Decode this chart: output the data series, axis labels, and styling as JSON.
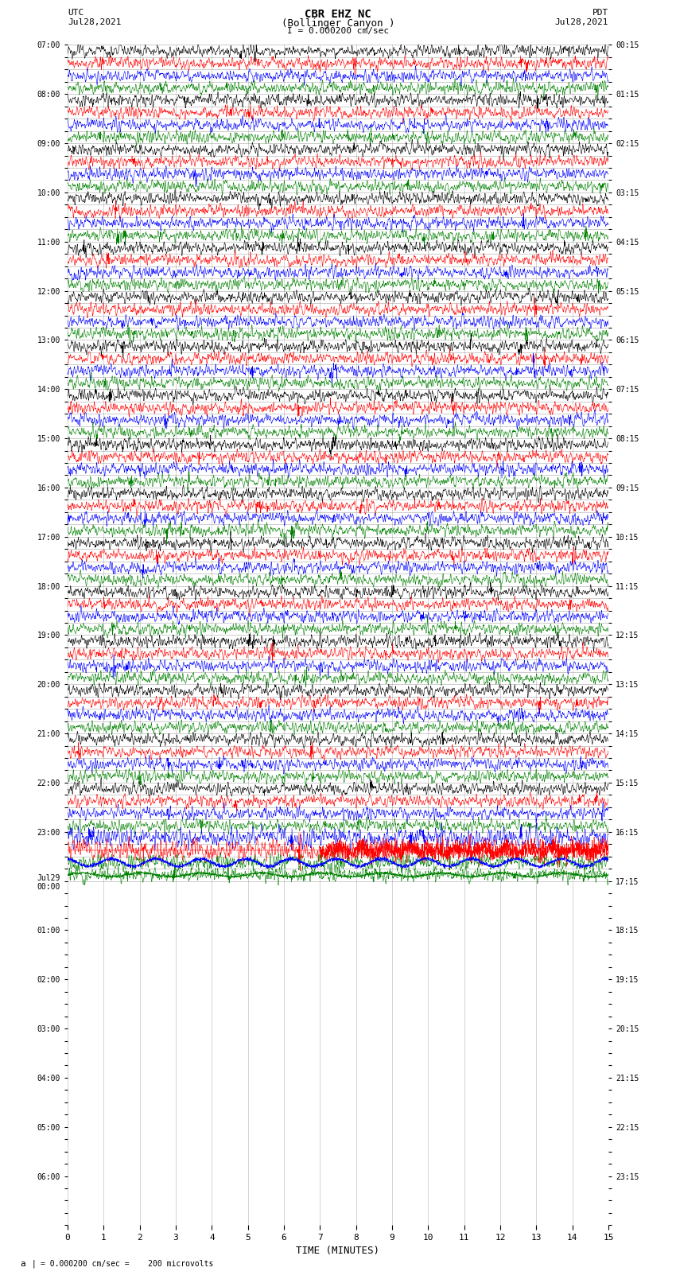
{
  "title_line1": "CBR EHZ NC",
  "title_line2": "(Bollinger Canyon )",
  "title_line3": "I = 0.000200 cm/sec",
  "left_label_top": "UTC",
  "left_label_date": "Jul28,2021",
  "right_label_top": "PDT",
  "right_label_date": "Jul28,2021",
  "bottom_label": "TIME (MINUTES)",
  "footer_text": "= 0.000200 cm/sec =    200 microvolts",
  "scale_text": "a |",
  "xlim": [
    0,
    15
  ],
  "xticks": [
    0,
    1,
    2,
    3,
    4,
    5,
    6,
    7,
    8,
    9,
    10,
    11,
    12,
    13,
    14,
    15
  ],
  "utc_labels": [
    "07:00",
    "",
    "",
    "",
    "08:00",
    "",
    "",
    "",
    "09:00",
    "",
    "",
    "",
    "10:00",
    "",
    "",
    "",
    "11:00",
    "",
    "",
    "",
    "12:00",
    "",
    "",
    "",
    "13:00",
    "",
    "",
    "",
    "14:00",
    "",
    "",
    "",
    "15:00",
    "",
    "",
    "",
    "16:00",
    "",
    "",
    "",
    "17:00",
    "",
    "",
    "",
    "18:00",
    "",
    "",
    "",
    "19:00",
    "",
    "",
    "",
    "20:00",
    "",
    "",
    "",
    "21:00",
    "",
    "",
    "",
    "22:00",
    "",
    "",
    "",
    "23:00",
    "",
    "",
    "",
    "Jul29\n00:00",
    "",
    "",
    "",
    "01:00",
    "",
    "",
    "",
    "02:00",
    "",
    "",
    "",
    "03:00",
    "",
    "",
    "",
    "04:00",
    "",
    "",
    "",
    "05:00",
    "",
    "",
    "",
    "06:00",
    "",
    "",
    "",
    ""
  ],
  "pdt_labels": [
    "00:15",
    "",
    "",
    "",
    "01:15",
    "",
    "",
    "",
    "02:15",
    "",
    "",
    "",
    "03:15",
    "",
    "",
    "",
    "04:15",
    "",
    "",
    "",
    "05:15",
    "",
    "",
    "",
    "06:15",
    "",
    "",
    "",
    "07:15",
    "",
    "",
    "",
    "08:15",
    "",
    "",
    "",
    "09:15",
    "",
    "",
    "",
    "10:15",
    "",
    "",
    "",
    "11:15",
    "",
    "",
    "",
    "12:15",
    "",
    "",
    "",
    "13:15",
    "",
    "",
    "",
    "14:15",
    "",
    "",
    "",
    "15:15",
    "",
    "",
    "",
    "16:15",
    "",
    "",
    "",
    "17:15",
    "",
    "",
    "",
    "18:15",
    "",
    "",
    "",
    "19:15",
    "",
    "",
    "",
    "20:15",
    "",
    "",
    "",
    "21:15",
    "",
    "",
    "",
    "22:15",
    "",
    "",
    "",
    "23:15",
    "",
    "",
    "",
    ""
  ],
  "colors": [
    "black",
    "red",
    "blue",
    "green"
  ],
  "n_rows": 68,
  "seed": 42,
  "bg_color": "white",
  "grid_color": "#888888",
  "vgrid_color": "#888888"
}
